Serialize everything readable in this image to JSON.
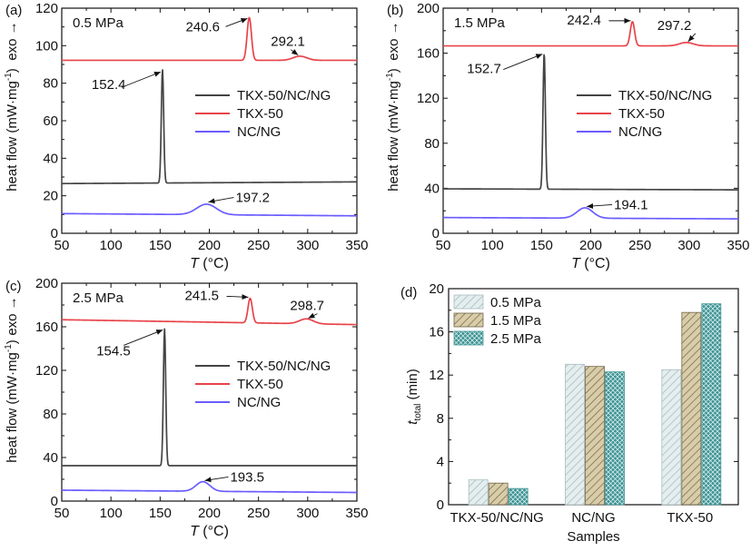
{
  "colors": {
    "mix": "#444444",
    "tkx": "#e8434a",
    "ncng": "#6a5cff",
    "bar_05": "#e4eeee",
    "bar_15": "#d9cca8",
    "bar_25": "#3e9494",
    "hatch_05": "#a9bcc0",
    "hatch_15": "#6f6548",
    "hatch_25": "#e8f4f4"
  },
  "chart_data": [
    {
      "type": "line",
      "panel_label": "(a)",
      "annotation": "0.5 MPa",
      "xlabel_italic": "T",
      "xlabel_unit": " (°C)",
      "ylabel_main": "heat flow (mW·mg",
      "ylabel_sup": "-1",
      "ylabel_close": ")",
      "exo_label": "exo →",
      "xlim": [
        50,
        350
      ],
      "ylim": [
        0,
        120
      ],
      "xticks": [
        50,
        100,
        150,
        200,
        250,
        300,
        350
      ],
      "yticks": [
        0,
        20,
        40,
        60,
        80,
        100,
        120
      ],
      "legend": [
        "TKX-50/NC/NG",
        "TKX-50",
        "NC/NG"
      ],
      "series": [
        {
          "name": "TKX-50/NC/NG",
          "color_key": "mix",
          "baseline": 26.5,
          "slope": 0.003,
          "peaks": [
            {
              "x": 152.4,
              "h": 60.5,
              "w": 1.2
            }
          ]
        },
        {
          "name": "TKX-50",
          "color_key": "tkx",
          "baseline": 92.2,
          "slope": 0.0,
          "peaks": [
            {
              "x": 240.6,
              "h": 22.8,
              "w": 2.2
            },
            {
              "x": 292.1,
              "h": 2.2,
              "w": 7
            }
          ]
        },
        {
          "name": "NC/NG",
          "color_key": "ncng",
          "baseline": 10.5,
          "slope": -0.004,
          "peaks": [
            {
              "x": 197.2,
              "h": 5.6,
              "w": 10
            }
          ]
        }
      ],
      "peak_labels": [
        {
          "text": "152.4",
          "x": 152.4,
          "y": 86.5
        },
        {
          "text": "240.6",
          "x": 240.6,
          "y": 115
        },
        {
          "text": "292.1",
          "x": 292.1,
          "y": 94.5
        },
        {
          "text": "197.2",
          "x": 197.2,
          "y": 16.2
        }
      ]
    },
    {
      "type": "line",
      "panel_label": "(b)",
      "annotation": "1.5 MPa",
      "xlabel_italic": "T",
      "xlabel_unit": " (°C)",
      "ylabel_main": "heat flow (mW·mg",
      "ylabel_sup": "-1",
      "ylabel_close": ")",
      "exo_label": "exo →",
      "xlim": [
        50,
        350
      ],
      "ylim": [
        0,
        200
      ],
      "xticks": [
        50,
        100,
        150,
        200,
        250,
        300,
        350
      ],
      "yticks": [
        0,
        40,
        80,
        120,
        160,
        200
      ],
      "legend": [
        "TKX-50/NC/NG",
        "TKX-50",
        "NC/NG"
      ],
      "series": [
        {
          "name": "TKX-50/NC/NG",
          "color_key": "mix",
          "baseline": 39.5,
          "slope": -0.003,
          "peaks": [
            {
              "x": 152.7,
              "h": 121,
              "w": 1.2
            }
          ]
        },
        {
          "name": "TKX-50",
          "color_key": "tkx",
          "baseline": 166.5,
          "slope": 0.0,
          "peaks": [
            {
              "x": 242.4,
              "h": 21.5,
              "w": 2.2
            },
            {
              "x": 297.2,
              "h": 3.0,
              "w": 7
            }
          ]
        },
        {
          "name": "NC/NG",
          "color_key": "ncng",
          "baseline": 14.0,
          "slope": -0.004,
          "peaks": [
            {
              "x": 194.1,
              "h": 9.2,
              "w": 8
            }
          ]
        }
      ],
      "peak_labels": [
        {
          "text": "152.7",
          "x": 152.7,
          "y": 160
        },
        {
          "text": "242.4",
          "x": 242.4,
          "y": 188
        },
        {
          "text": "297.2",
          "x": 297.2,
          "y": 169.5
        },
        {
          "text": "194.1",
          "x": 194.1,
          "y": 23
        }
      ]
    },
    {
      "type": "line",
      "panel_label": "(c)",
      "annotation": "2.5 MPa",
      "xlabel_italic": "T",
      "xlabel_unit": " (°C)",
      "ylabel_main": "heat flow (mW·mg",
      "ylabel_sup": "-1",
      "ylabel_close": ")",
      "exo_label": "exo →",
      "xlim": [
        50,
        350
      ],
      "ylim": [
        0,
        200
      ],
      "xticks": [
        50,
        100,
        150,
        200,
        250,
        300,
        350
      ],
      "yticks": [
        0,
        40,
        80,
        120,
        160,
        200
      ],
      "legend": [
        "TKX-50/NC/NG",
        "TKX-50",
        "NC/NG"
      ],
      "series": [
        {
          "name": "TKX-50/NC/NG",
          "color_key": "mix",
          "baseline": 32.5,
          "slope": 0.0,
          "peaks": [
            {
              "x": 154.5,
              "h": 125.5,
              "w": 1.2
            }
          ]
        },
        {
          "name": "TKX-50",
          "color_key": "tkx",
          "baseline": 166.5,
          "slope": -0.015,
          "peaks": [
            {
              "x": 241.5,
              "h": 22.5,
              "w": 2.2
            },
            {
              "x": 298.7,
              "h": 4.5,
              "w": 7
            }
          ]
        },
        {
          "name": "NC/NG",
          "color_key": "ncng",
          "baseline": 10.0,
          "slope": -0.007,
          "peaks": [
            {
              "x": 193.5,
              "h": 8.8,
              "w": 7
            }
          ]
        }
      ],
      "peak_labels": [
        {
          "text": "154.5",
          "x": 154.5,
          "y": 158
        },
        {
          "text": "241.5",
          "x": 241.5,
          "y": 188
        },
        {
          "text": "298.7",
          "x": 298.7,
          "y": 167
        },
        {
          "text": "193.5",
          "x": 193.5,
          "y": 18
        }
      ]
    },
    {
      "type": "bar",
      "panel_label": "(d)",
      "xlabel": "Samples",
      "ylabel_italic": "t",
      "ylabel_sub": "total",
      "ylabel_unit": " (min)",
      "ylim": [
        0,
        20
      ],
      "yticks": [
        0,
        4,
        8,
        12,
        16,
        20
      ],
      "categories": [
        "TKX-50/NC/NG",
        "NC/NG",
        "TKX-50"
      ],
      "series": [
        {
          "name": "0.5 MPa",
          "values": [
            2.3,
            13.0,
            12.5
          ]
        },
        {
          "name": "1.5 MPa",
          "values": [
            2.0,
            12.8,
            17.8
          ]
        },
        {
          "name": "2.5 MPa",
          "values": [
            1.5,
            12.3,
            18.6
          ]
        }
      ]
    }
  ]
}
